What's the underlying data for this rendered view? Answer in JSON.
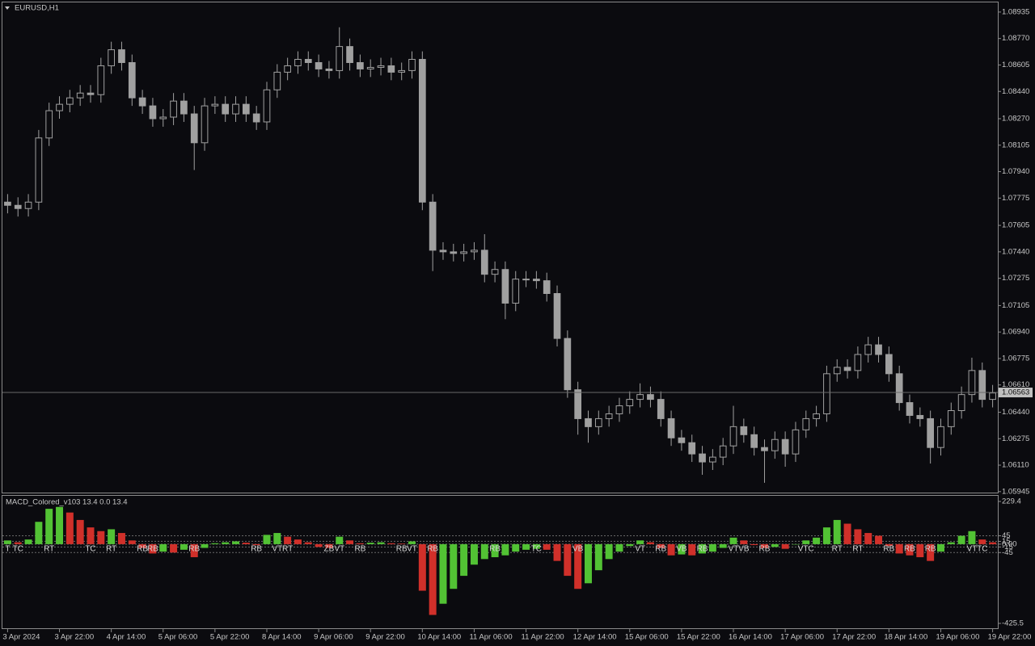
{
  "chart_data": [
    {
      "type": "candlestick",
      "title": "EURUSD,H1",
      "color": "#a0a0a0",
      "last_price": 1.06563,
      "categories": [
        "3 Apr 2024",
        null,
        null,
        null,
        null,
        "3 Apr 22:00",
        null,
        null,
        null,
        null,
        "4 Apr 14:00",
        null,
        null,
        null,
        null,
        "5 Apr 06:00",
        null,
        null,
        null,
        null,
        "5 Apr 22:00",
        null,
        null,
        null,
        null,
        "8 Apr 14:00",
        null,
        null,
        null,
        null,
        "9 Apr 06:00",
        null,
        null,
        null,
        null,
        "9 Apr 22:00",
        null,
        null,
        null,
        null,
        "10 Apr 14:00",
        null,
        null,
        null,
        null,
        "11 Apr 06:00",
        null,
        null,
        null,
        null,
        "11 Apr 22:00",
        null,
        null,
        null,
        null,
        "12 Apr 14:00",
        null,
        null,
        null,
        null,
        "15 Apr 06:00",
        null,
        null,
        null,
        null,
        "15 Apr 22:00",
        null,
        null,
        null,
        null,
        "16 Apr 14:00",
        null,
        null,
        null,
        null,
        "17 Apr 06:00",
        null,
        null,
        null,
        null,
        "17 Apr 22:00",
        null,
        null,
        null,
        null,
        "18 Apr 14:00",
        null,
        null,
        null,
        null,
        "19 Apr 06:00",
        null,
        null,
        null,
        null,
        "19 Apr 22:00"
      ],
      "open": [
        1.0775,
        1.0773,
        1.0771,
        1.0775,
        1.0815,
        1.0832,
        1.0836,
        1.084,
        1.0843,
        1.0842,
        1.086,
        1.087,
        1.0862,
        1.084,
        1.0835,
        1.0827,
        1.0828,
        1.0838,
        1.083,
        1.0812,
        1.0835,
        1.0836,
        1.083,
        1.0836,
        1.083,
        1.0825,
        1.0845,
        1.0856,
        1.086,
        1.0864,
        1.0862,
        1.0858,
        1.0857,
        1.0872,
        1.0862,
        1.0858,
        1.0859,
        1.086,
        1.0856,
        1.0857,
        1.0864,
        1.0775,
        1.0745,
        1.0744,
        1.0743,
        1.0744,
        1.0745,
        1.073,
        1.0733,
        1.0712,
        1.0727,
        1.0727,
        1.0726,
        1.0718,
        1.069,
        1.0658,
        1.064,
        1.0635,
        1.064,
        1.0643,
        1.0648,
        1.0652,
        1.0655,
        1.0652,
        1.064,
        1.0628,
        1.0625,
        1.0618,
        1.0613,
        1.0616,
        1.0623,
        1.0635,
        1.063,
        1.0622,
        1.062,
        1.0627,
        1.0618,
        1.0633,
        1.064,
        1.0643,
        1.0668,
        1.0672,
        1.067,
        1.068,
        1.0686,
        1.068,
        1.0668,
        1.065,
        1.0642,
        1.064,
        1.0622,
        1.0635,
        1.0645,
        1.0655,
        1.067,
        1.0652
      ],
      "high": [
        1.078,
        1.0778,
        1.078,
        1.082,
        1.0837,
        1.0841,
        1.0845,
        1.0848,
        1.0848,
        1.0865,
        1.0875,
        1.0875,
        1.0867,
        1.0845,
        1.084,
        1.0833,
        1.0843,
        1.0843,
        1.0835,
        1.084,
        1.0841,
        1.0841,
        1.0841,
        1.0841,
        1.0835,
        1.085,
        1.0861,
        1.0865,
        1.0869,
        1.0869,
        1.0867,
        1.0863,
        1.0884,
        1.0877,
        1.0867,
        1.0864,
        1.0865,
        1.0865,
        1.0862,
        1.0869,
        1.0869,
        1.078,
        1.075,
        1.0749,
        1.0749,
        1.075,
        1.0755,
        1.0738,
        1.0738,
        1.0732,
        1.0732,
        1.0732,
        1.0731,
        1.0723,
        1.0695,
        1.0663,
        1.0645,
        1.0645,
        1.0648,
        1.0653,
        1.0657,
        1.0662,
        1.066,
        1.0657,
        1.0645,
        1.0633,
        1.063,
        1.0623,
        1.0621,
        1.0628,
        1.0648,
        1.064,
        1.0635,
        1.0627,
        1.0632,
        1.0632,
        1.0638,
        1.0645,
        1.0648,
        1.0673,
        1.0677,
        1.0677,
        1.0685,
        1.0691,
        1.0691,
        1.0685,
        1.0673,
        1.0655,
        1.0647,
        1.0645,
        1.064,
        1.065,
        1.066,
        1.0678,
        1.0675,
        1.0661
      ],
      "low": [
        1.0768,
        1.0766,
        1.0766,
        1.077,
        1.081,
        1.0827,
        1.0831,
        1.0835,
        1.0837,
        1.0837,
        1.0855,
        1.0857,
        1.0835,
        1.083,
        1.0822,
        1.0822,
        1.0823,
        1.0825,
        1.0795,
        1.0807,
        1.083,
        1.0825,
        1.0825,
        1.0825,
        1.082,
        1.082,
        1.084,
        1.0851,
        1.0855,
        1.0857,
        1.0853,
        1.0852,
        1.0852,
        1.0857,
        1.0853,
        1.0853,
        1.0854,
        1.0851,
        1.0851,
        1.0852,
        1.077,
        1.0732,
        1.0739,
        1.0738,
        1.0738,
        1.0739,
        1.0725,
        1.0725,
        1.0702,
        1.0707,
        1.0722,
        1.0721,
        1.0713,
        1.0685,
        1.0653,
        1.063,
        1.0625,
        1.063,
        1.0635,
        1.0638,
        1.0643,
        1.0647,
        1.0647,
        1.0635,
        1.0623,
        1.062,
        1.0613,
        1.0605,
        1.0608,
        1.0611,
        1.0618,
        1.0625,
        1.0617,
        1.06,
        1.0615,
        1.061,
        1.0613,
        1.0628,
        1.0635,
        1.0638,
        1.0663,
        1.0665,
        1.0665,
        1.0675,
        1.0675,
        1.0663,
        1.0645,
        1.0637,
        1.0635,
        1.0612,
        1.0617,
        1.063,
        1.064,
        1.065,
        1.0647,
        1.0647
      ],
      "close": [
        1.0773,
        1.0771,
        1.0775,
        1.0815,
        1.0832,
        1.0836,
        1.084,
        1.0843,
        1.0842,
        1.086,
        1.087,
        1.0862,
        1.084,
        1.0835,
        1.0827,
        1.0828,
        1.0838,
        1.083,
        1.0812,
        1.0835,
        1.0836,
        1.083,
        1.0836,
        1.083,
        1.0825,
        1.0845,
        1.0856,
        1.086,
        1.0864,
        1.0862,
        1.0858,
        1.0857,
        1.0872,
        1.0862,
        1.0858,
        1.0859,
        1.086,
        1.0856,
        1.0857,
        1.0864,
        1.0775,
        1.0745,
        1.0744,
        1.0743,
        1.0744,
        1.0745,
        1.073,
        1.0733,
        1.0712,
        1.0727,
        1.0727,
        1.0726,
        1.0718,
        1.069,
        1.0658,
        1.064,
        1.0635,
        1.064,
        1.0643,
        1.0648,
        1.0652,
        1.0655,
        1.0652,
        1.064,
        1.0628,
        1.0625,
        1.0618,
        1.0613,
        1.0616,
        1.0623,
        1.0635,
        1.063,
        1.0622,
        1.062,
        1.0627,
        1.0618,
        1.0633,
        1.064,
        1.0643,
        1.0668,
        1.0672,
        1.067,
        1.068,
        1.0686,
        1.068,
        1.0668,
        1.065,
        1.0642,
        1.064,
        1.0622,
        1.0635,
        1.0645,
        1.0655,
        1.067,
        1.0652,
        1.0656
      ],
      "ylim": [
        1.05939,
        1.08995
      ],
      "yticks": [
        1.08935,
        {
          "value": 1.0877,
          "label": "1.08770"
        },
        1.08605,
        {
          "value": 1.0844,
          "label": "1.08440"
        },
        {
          "value": 1.0827,
          "label": "1.08270"
        },
        1.08105,
        {
          "value": 1.0794,
          "label": "1.07940"
        },
        1.07775,
        1.07605,
        {
          "value": 1.0744,
          "label": "1.07440"
        },
        1.07275,
        1.07105,
        {
          "value": 1.0694,
          "label": "1.06940"
        },
        1.06775,
        {
          "value": 1.0661,
          "label": "1.06610"
        },
        {
          "value": 1.0644,
          "label": "1.06440"
        },
        1.06275,
        {
          "value": 1.0611,
          "label": "1.06110"
        },
        1.05945
      ]
    },
    {
      "type": "bar",
      "title": "MACD_Colored_v103 13.4 0.0 13.4",
      "up_color": "#52c234",
      "down_color": "#d0302a",
      "values": [
        20,
        10,
        25,
        120,
        190,
        200,
        170,
        130,
        90,
        70,
        80,
        60,
        20,
        -20,
        -50,
        -40,
        -45,
        -30,
        -70,
        -20,
        5,
        10,
        15,
        8,
        -5,
        50,
        60,
        40,
        25,
        10,
        -15,
        -20,
        40,
        20,
        5,
        8,
        10,
        5,
        3,
        15,
        -250,
        -380,
        -320,
        -240,
        -170,
        -110,
        -80,
        -70,
        -60,
        -40,
        -30,
        -25,
        -30,
        -90,
        -170,
        -240,
        -210,
        -140,
        -80,
        -40,
        -10,
        20,
        10,
        -20,
        -60,
        -55,
        -60,
        -50,
        -40,
        -20,
        35,
        20,
        -5,
        -20,
        -15,
        -25,
        0,
        20,
        35,
        90,
        130,
        110,
        80,
        60,
        45,
        -10,
        -50,
        -60,
        -70,
        -90,
        -40,
        10,
        45,
        70,
        25,
        10
      ],
      "ylim": [
        -425.5,
        229.4
      ],
      "yticks": [
        229.4,
        45,
        15,
        {
          "value": 0,
          "label": "0.00"
        },
        -15,
        -45,
        -425.5
      ],
      "signals": [
        {
          "bar": 0,
          "label": "T"
        },
        {
          "bar": 1,
          "label": "TC"
        },
        {
          "bar": 4,
          "label": "RT"
        },
        {
          "bar": 8,
          "label": "TC"
        },
        {
          "bar": 10,
          "label": "RT"
        },
        {
          "bar": 13,
          "label": "RB"
        },
        {
          "bar": 14,
          "label": "RB"
        },
        {
          "bar": 18,
          "label": "RB"
        },
        {
          "bar": 24,
          "label": "RB"
        },
        {
          "bar": 26,
          "label": "VT"
        },
        {
          "bar": 27,
          "label": "RT"
        },
        {
          "bar": 31,
          "label": "ZB"
        },
        {
          "bar": 32,
          "label": "VT"
        },
        {
          "bar": 34,
          "label": "RB"
        },
        {
          "bar": 38,
          "label": "RB"
        },
        {
          "bar": 39,
          "label": "VT"
        },
        {
          "bar": 41,
          "label": "RB"
        },
        {
          "bar": 47,
          "label": "RB"
        },
        {
          "bar": 51,
          "label": "TC"
        },
        {
          "bar": 55,
          "label": "VB"
        },
        {
          "bar": 61,
          "label": "VT"
        },
        {
          "bar": 63,
          "label": "RB"
        },
        {
          "bar": 65,
          "label": "VB"
        },
        {
          "bar": 67,
          "label": "RB"
        },
        {
          "bar": 70,
          "label": "VT"
        },
        {
          "bar": 71,
          "label": "VB"
        },
        {
          "bar": 73,
          "label": "RB"
        },
        {
          "bar": 77,
          "label": "VTC"
        },
        {
          "bar": 80,
          "label": "RT"
        },
        {
          "bar": 82,
          "label": "RT"
        },
        {
          "bar": 85,
          "label": "RB"
        },
        {
          "bar": 87,
          "label": "RB"
        },
        {
          "bar": 89,
          "label": "RB"
        },
        {
          "bar": 93,
          "label": "VT"
        },
        {
          "bar": 94,
          "label": "TC"
        }
      ]
    }
  ]
}
